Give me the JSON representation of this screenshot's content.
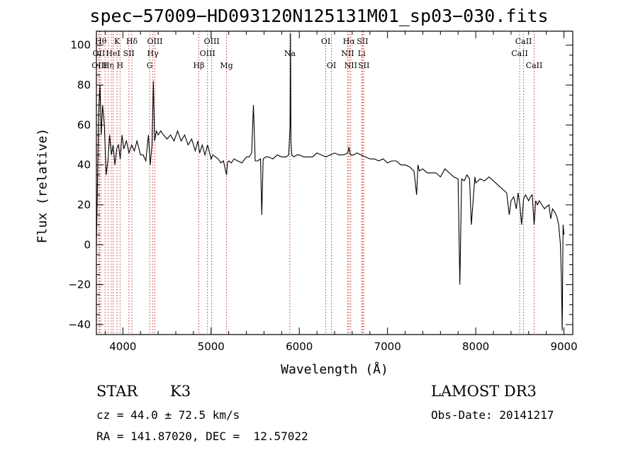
{
  "title": "spec−57009−HD093120N125131M01_sp03−030.fits",
  "info": {
    "class_label": "STAR",
    "subclass": "K3",
    "survey": "LAMOST DR3",
    "cz": "cz = 44.0 ± 72.5 km/s",
    "obs_date": "Obs-Date: 20141217",
    "radec": "RA = 141.87020, DEC =  12.57022"
  },
  "colors": {
    "spectrum": "#000000",
    "lines": "#cc3333",
    "axes": "#000000"
  },
  "chart_data": {
    "type": "line",
    "title": "spec−57009−HD093120N125131M01_sp03−030.fits",
    "xlabel": "Wavelength (Å)",
    "ylabel": "Flux (relative)",
    "xlim": [
      3700,
      9100
    ],
    "ylim": [
      -45,
      107
    ],
    "xticks": [
      4000,
      5000,
      6000,
      7000,
      8000,
      9000
    ],
    "yticks": [
      -40,
      -20,
      0,
      20,
      40,
      60,
      80,
      100
    ],
    "series": [
      {
        "name": "spectrum",
        "x": [
          3700,
          3712,
          3725,
          3740,
          3755,
          3770,
          3790,
          3810,
          3830,
          3850,
          3870,
          3890,
          3910,
          3930,
          3950,
          3970,
          3990,
          4010,
          4040,
          4070,
          4100,
          4130,
          4160,
          4200,
          4230,
          4260,
          4290,
          4310,
          4330,
          4345,
          4360,
          4380,
          4400,
          4430,
          4460,
          4500,
          4540,
          4580,
          4620,
          4660,
          4700,
          4740,
          4780,
          4820,
          4850,
          4870,
          4900,
          4930,
          4960,
          5000,
          5020,
          5050,
          5080,
          5110,
          5140,
          5160,
          5175,
          5185,
          5200,
          5230,
          5260,
          5300,
          5350,
          5400,
          5430,
          5460,
          5480,
          5500,
          5530,
          5560,
          5575,
          5590,
          5620,
          5650,
          5700,
          5750,
          5800,
          5850,
          5880,
          5895,
          5900,
          5905,
          5915,
          5940,
          5970,
          6000,
          6050,
          6100,
          6150,
          6200,
          6250,
          6300,
          6350,
          6400,
          6450,
          6500,
          6550,
          6563,
          6580,
          6620,
          6650,
          6700,
          6750,
          6800,
          6850,
          6900,
          6950,
          7000,
          7050,
          7100,
          7150,
          7200,
          7250,
          7300,
          7330,
          7345,
          7360,
          7400,
          7450,
          7500,
          7550,
          7600,
          7650,
          7700,
          7750,
          7800,
          7820,
          7840,
          7870,
          7900,
          7930,
          7950,
          7990,
          8000,
          8050,
          8100,
          8150,
          8200,
          8250,
          8300,
          8350,
          8380,
          8400,
          8430,
          8460,
          8480,
          8500,
          8520,
          8542,
          8565,
          8600,
          8620,
          8640,
          8662,
          8680,
          8700,
          8720,
          8750,
          8780,
          8800,
          8830,
          8850,
          8870,
          8900,
          8920,
          8940,
          8960,
          8970,
          8980,
          8990,
          9000
        ],
        "y": [
          0,
          30,
          65,
          80,
          55,
          70,
          60,
          35,
          42,
          55,
          45,
          50,
          40,
          48,
          50,
          43,
          55,
          48,
          52,
          46,
          50,
          47,
          52,
          45,
          45,
          42,
          55,
          40,
          50,
          82,
          52,
          57,
          55,
          57,
          55,
          53,
          55,
          52,
          57,
          52,
          55,
          50,
          53,
          47,
          52,
          46,
          50,
          45,
          50,
          43,
          45,
          44,
          43,
          41,
          42,
          38,
          35,
          41,
          42,
          41,
          43,
          42,
          41,
          44,
          44,
          46,
          70,
          42,
          42,
          43,
          15,
          43,
          44,
          44,
          43,
          45,
          44,
          44,
          45,
          60,
          106,
          52,
          45,
          44,
          45,
          45,
          44,
          44,
          44,
          46,
          45,
          44,
          45,
          46,
          45,
          45,
          46,
          49,
          45,
          45,
          46,
          45,
          44,
          43,
          43,
          42,
          43,
          41,
          42,
          42,
          40,
          40,
          39,
          37,
          25,
          40,
          37,
          38,
          36,
          36,
          36,
          34,
          38,
          36,
          34,
          33,
          -20,
          33,
          32,
          35,
          33,
          10,
          34,
          31,
          33,
          32,
          34,
          32,
          30,
          28,
          26,
          15,
          22,
          24,
          18,
          26,
          20,
          10,
          23,
          25,
          22,
          24,
          25,
          10,
          22,
          20,
          22,
          20,
          18,
          19,
          20,
          13,
          18,
          16,
          14,
          10,
          0,
          -15,
          -43,
          10,
          5
        ]
      }
    ],
    "line_markers": [
      {
        "wavelength": 3750,
        "label": "Hθ",
        "row": 1
      },
      {
        "wavelength": 3727,
        "label": "OII",
        "row": 2
      },
      {
        "wavelength": 3734,
        "label": "OIII",
        "row": 3
      },
      {
        "wavelength": 3798,
        "label": "",
        "row": 1
      },
      {
        "wavelength": 3835,
        "label": "Hη",
        "row": 3
      },
      {
        "wavelength": 3869,
        "label": "",
        "row": 1
      },
      {
        "wavelength": 3889,
        "label": "HeI",
        "row": 2
      },
      {
        "wavelength": 3934,
        "label": "K",
        "row": 1
      },
      {
        "wavelength": 3968,
        "label": "H",
        "row": 3
      },
      {
        "wavelength": 4068,
        "label": "SII",
        "row": 2
      },
      {
        "wavelength": 4102,
        "label": "Hδ",
        "row": 1
      },
      {
        "wavelength": 4304,
        "label": "G",
        "row": 3
      },
      {
        "wavelength": 4340,
        "label": "Hγ",
        "row": 2
      },
      {
        "wavelength": 4363,
        "label": "OIII",
        "row": 1
      },
      {
        "wavelength": 4861,
        "label": "Hβ",
        "row": 3
      },
      {
        "wavelength": 4959,
        "label": "OIII",
        "row": 2
      },
      {
        "wavelength": 5007,
        "label": "OIII",
        "row": 1
      },
      {
        "wavelength": 5175,
        "label": "Mg",
        "row": 3
      },
      {
        "wavelength": 5893,
        "label": "Na",
        "row": 2
      },
      {
        "wavelength": 6300,
        "label": "OI",
        "row": 1
      },
      {
        "wavelength": 6364,
        "label": "OI",
        "row": 3
      },
      {
        "wavelength": 6548,
        "label": "NII",
        "row": 2
      },
      {
        "wavelength": 6563,
        "label": "Hα",
        "row": 1
      },
      {
        "wavelength": 6583,
        "label": "NII",
        "row": 3
      },
      {
        "wavelength": 6707,
        "label": "Li",
        "row": 2
      },
      {
        "wavelength": 6716,
        "label": "SII",
        "row": 1
      },
      {
        "wavelength": 6731,
        "label": "SII",
        "row": 3
      },
      {
        "wavelength": 8498,
        "label": "CaII",
        "row": 2
      },
      {
        "wavelength": 8542,
        "label": "CaII",
        "row": 1
      },
      {
        "wavelength": 8662,
        "label": "CaII",
        "row": 3
      }
    ]
  }
}
